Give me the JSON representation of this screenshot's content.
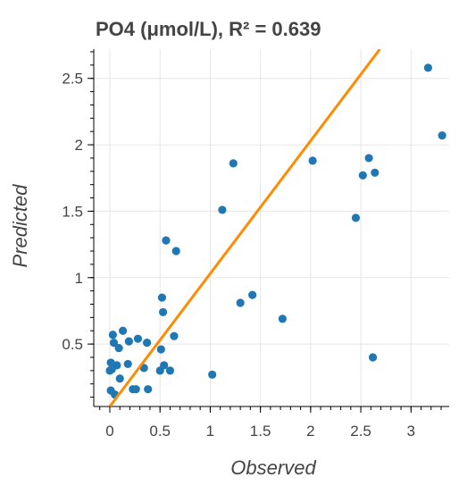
{
  "chart_data": {
    "type": "scatter",
    "title": "PO4 (μmol/L), R² = 0.639",
    "xlabel": "Observed",
    "ylabel": "Predicted",
    "xlim": [
      -0.16,
      3.38
    ],
    "ylim": [
      0.03,
      2.72
    ],
    "xticks": [
      0,
      0.5,
      1,
      1.5,
      2,
      2.5,
      3
    ],
    "xtick_labels": [
      "0",
      "0.5",
      "1",
      "1.5",
      "2",
      "2.5",
      "3"
    ],
    "yticks": [
      0.5,
      1,
      1.5,
      2,
      2.5
    ],
    "ytick_labels": [
      "0.5",
      "1",
      "1.5",
      "2",
      "2.5"
    ],
    "grid": true,
    "legend": "none",
    "colors": {
      "points": "#1f77b4",
      "fit_line": "#ff8c00",
      "text": "#444444"
    },
    "series": [
      {
        "values": [
          {
            "x": 0.0,
            "y": 0.3
          },
          {
            "x": 0.01,
            "y": 0.36
          },
          {
            "x": 0.01,
            "y": 0.15
          },
          {
            "x": 0.02,
            "y": 0.31
          },
          {
            "x": 0.03,
            "y": 0.57
          },
          {
            "x": 0.04,
            "y": 0.51
          },
          {
            "x": 0.05,
            "y": 0.12
          },
          {
            "x": 0.07,
            "y": 0.34
          },
          {
            "x": 0.09,
            "y": 0.47
          },
          {
            "x": 0.1,
            "y": 0.24
          },
          {
            "x": 0.13,
            "y": 0.6
          },
          {
            "x": 0.18,
            "y": 0.35
          },
          {
            "x": 0.19,
            "y": 0.52
          },
          {
            "x": 0.23,
            "y": 0.16
          },
          {
            "x": 0.26,
            "y": 0.16
          },
          {
            "x": 0.28,
            "y": 0.54
          },
          {
            "x": 0.34,
            "y": 0.32
          },
          {
            "x": 0.37,
            "y": 0.51
          },
          {
            "x": 0.38,
            "y": 0.16
          },
          {
            "x": 0.5,
            "y": 0.3
          },
          {
            "x": 0.51,
            "y": 0.46
          },
          {
            "x": 0.52,
            "y": 0.85
          },
          {
            "x": 0.53,
            "y": 0.74
          },
          {
            "x": 0.54,
            "y": 0.34
          },
          {
            "x": 0.56,
            "y": 1.28
          },
          {
            "x": 0.6,
            "y": 0.3
          },
          {
            "x": 0.64,
            "y": 0.56
          },
          {
            "x": 0.66,
            "y": 1.2
          },
          {
            "x": 1.02,
            "y": 0.27
          },
          {
            "x": 1.12,
            "y": 1.51
          },
          {
            "x": 1.23,
            "y": 1.86
          },
          {
            "x": 1.3,
            "y": 0.81
          },
          {
            "x": 1.42,
            "y": 0.87
          },
          {
            "x": 1.72,
            "y": 0.69
          },
          {
            "x": 2.02,
            "y": 1.88
          },
          {
            "x": 2.45,
            "y": 1.45
          },
          {
            "x": 2.52,
            "y": 1.77
          },
          {
            "x": 2.58,
            "y": 1.9
          },
          {
            "x": 2.62,
            "y": 0.4
          },
          {
            "x": 2.64,
            "y": 1.79
          },
          {
            "x": 3.17,
            "y": 2.58
          },
          {
            "x": 3.31,
            "y": 2.07
          }
        ]
      }
    ],
    "fit_line": {
      "x": [
        0.0,
        2.69
      ],
      "y": [
        0.03,
        2.72
      ]
    }
  }
}
